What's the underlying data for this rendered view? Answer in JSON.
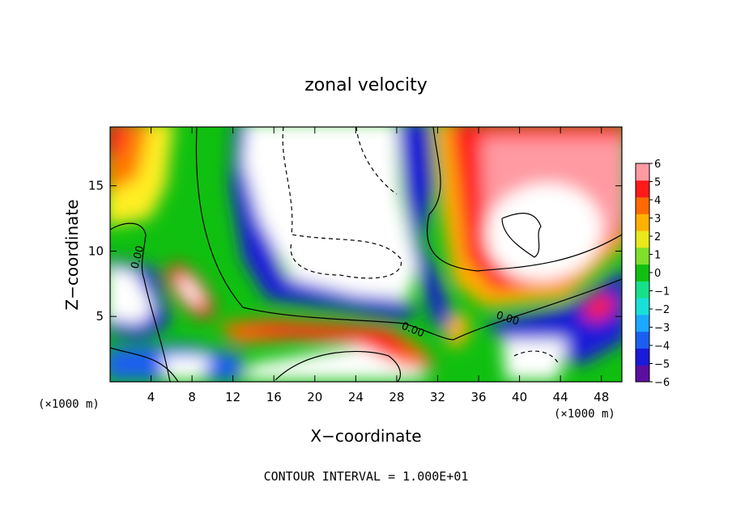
{
  "chart_data": {
    "type": "heatmap",
    "title": "zonal velocity",
    "xlabel": "X−coordinate",
    "ylabel": "Z−coordinate",
    "x_unit_left": "(×1000 m)",
    "x_unit_right": "(×1000 m)",
    "xlim": [
      0,
      50
    ],
    "ylim": [
      0,
      19.5
    ],
    "x_ticks": [
      4,
      8,
      12,
      16,
      20,
      24,
      28,
      32,
      36,
      40,
      44,
      48
    ],
    "y_ticks": [
      5,
      10,
      15
    ],
    "colorbar": {
      "min": -6,
      "max": 6,
      "tick_labels": [
        "6",
        "5",
        "4",
        "3",
        "2",
        "1",
        "0",
        "−1",
        "−2",
        "−3",
        "−4",
        "−5",
        "−6"
      ],
      "colors": [
        "#5b0fa0",
        "#1a1ad8",
        "#1b5ff0",
        "#1ba8ff",
        "#18e0d8",
        "#16e08a",
        "#10c010",
        "#7ee02a",
        "#e8e81a",
        "#ffb000",
        "#ff6a00",
        "#ff1a1a",
        "#ff9aa2"
      ]
    },
    "contour_label": "0.00",
    "footer": "CONTOUR INTERVAL = 1.000E+01"
  }
}
